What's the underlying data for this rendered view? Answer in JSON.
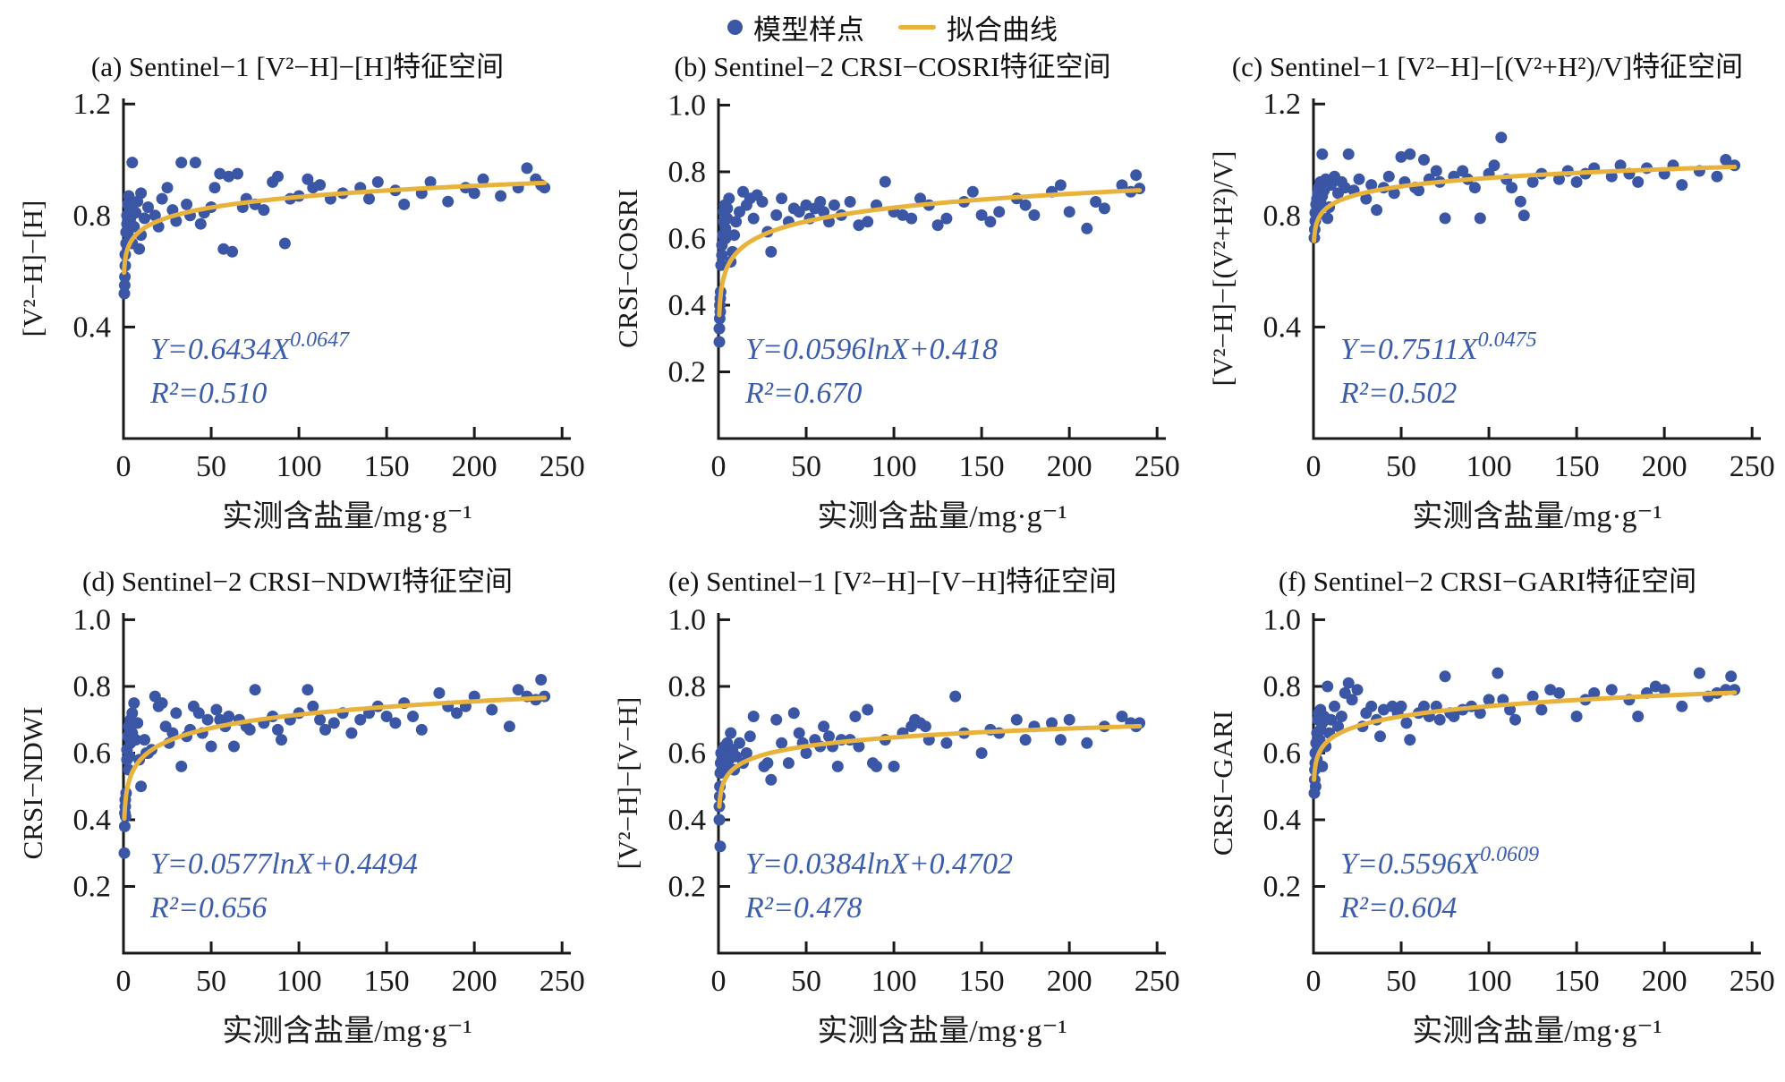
{
  "legend": {
    "sample_label": "模型样点",
    "fit_label": "拟合曲线"
  },
  "xlabel": "实测含盐量/mg·g⁻¹",
  "colors": {
    "point": "#3a56a4",
    "curve": "#e8b33d",
    "equation": "#3d5dab",
    "axis": "#1a1a1a"
  },
  "chart_data": [
    {
      "id": "a",
      "type": "scatter",
      "title": "(a) Sentinel−1 [V²−H]−[H]特征空间",
      "ylabel": "[V²−H]−[H]",
      "xlabel": "实测含盐量/mg·g⁻¹",
      "xlim": [
        0,
        255
      ],
      "ylim": [
        0,
        1.22
      ],
      "xticks": [
        0,
        50,
        100,
        150,
        200,
        250
      ],
      "yticks": [
        "0.4",
        "0.8",
        "1.2"
      ],
      "fit": {
        "type": "power",
        "a": 0.6434,
        "b": 0.0647,
        "label_base": "Y=0.6434X",
        "label_sup": "0.0647",
        "r2_label": "R²=0.510"
      },
      "points": {
        "x": [
          0.5,
          0.7,
          0.8,
          1,
          1,
          1.5,
          1.5,
          2,
          2,
          2.5,
          3,
          3,
          3.5,
          4,
          4,
          5,
          5,
          6,
          7,
          8,
          9,
          10,
          10,
          12,
          14,
          18,
          20,
          22,
          25,
          28,
          30,
          33,
          36,
          38,
          41,
          44,
          46,
          50,
          52,
          55,
          57,
          60,
          62,
          65,
          68,
          70,
          75,
          80,
          85,
          88,
          92,
          95,
          100,
          105,
          108,
          112,
          118,
          125,
          135,
          140,
          145,
          155,
          160,
          170,
          175,
          185,
          195,
          200,
          205,
          215,
          225,
          230,
          235,
          238,
          240
        ],
        "y": [
          0.52,
          0.55,
          0.58,
          0.62,
          0.66,
          0.7,
          0.74,
          0.77,
          0.8,
          0.84,
          0.87,
          0.75,
          0.72,
          0.79,
          0.83,
          0.99,
          0.7,
          0.76,
          0.81,
          0.85,
          0.68,
          0.73,
          0.88,
          0.79,
          0.83,
          0.8,
          0.76,
          0.86,
          0.9,
          0.82,
          0.78,
          0.99,
          0.84,
          0.8,
          0.99,
          0.77,
          0.81,
          0.83,
          0.9,
          0.95,
          0.68,
          0.94,
          0.67,
          0.95,
          0.83,
          0.86,
          0.84,
          0.82,
          0.92,
          0.94,
          0.7,
          0.86,
          0.87,
          0.93,
          0.9,
          0.91,
          0.86,
          0.88,
          0.9,
          0.86,
          0.92,
          0.89,
          0.84,
          0.88,
          0.92,
          0.85,
          0.9,
          0.88,
          0.93,
          0.87,
          0.9,
          0.97,
          0.93,
          0.91,
          0.9
        ]
      }
    },
    {
      "id": "b",
      "type": "scatter",
      "title": "(b) Sentinel−2 CRSI−COSRI特征空间",
      "ylabel": "CRSI−COSRI",
      "xlabel": "实测含盐量/mg·g⁻¹",
      "xlim": [
        0,
        255
      ],
      "ylim": [
        0,
        1.02
      ],
      "xticks": [
        0,
        50,
        100,
        150,
        200,
        250
      ],
      "yticks": [
        "0.2",
        "0.4",
        "0.6",
        "0.8",
        "1.0"
      ],
      "fit": {
        "type": "log",
        "a": 0.0596,
        "b": 0.418,
        "label_base": "Y=0.0596lnX+0.418",
        "label_sup": "",
        "r2_label": "R²=0.670"
      },
      "points": {
        "x": [
          0.5,
          0.5,
          0.7,
          0.8,
          1,
          1,
          1.2,
          1.5,
          2,
          2,
          2.5,
          3,
          3,
          3.5,
          4,
          4,
          5,
          5,
          6,
          7,
          8,
          9,
          10,
          12,
          14,
          16,
          18,
          20,
          22,
          25,
          28,
          30,
          33,
          36,
          40,
          43,
          46,
          50,
          52,
          55,
          58,
          60,
          63,
          66,
          70,
          75,
          80,
          85,
          90,
          95,
          100,
          105,
          110,
          115,
          120,
          125,
          130,
          140,
          145,
          150,
          155,
          160,
          170,
          175,
          180,
          190,
          195,
          200,
          210,
          215,
          220,
          230,
          235,
          238,
          240
        ],
        "y": [
          0.29,
          0.33,
          0.36,
          0.4,
          0.38,
          0.42,
          0.44,
          0.52,
          0.55,
          0.58,
          0.61,
          0.65,
          0.68,
          0.7,
          0.6,
          0.63,
          0.66,
          0.69,
          0.72,
          0.53,
          0.56,
          0.61,
          0.65,
          0.68,
          0.74,
          0.7,
          0.72,
          0.66,
          0.73,
          0.71,
          0.62,
          0.56,
          0.67,
          0.72,
          0.65,
          0.69,
          0.68,
          0.7,
          0.66,
          0.69,
          0.71,
          0.68,
          0.65,
          0.7,
          0.67,
          0.71,
          0.64,
          0.65,
          0.7,
          0.77,
          0.68,
          0.67,
          0.66,
          0.72,
          0.7,
          0.64,
          0.66,
          0.71,
          0.74,
          0.67,
          0.65,
          0.68,
          0.72,
          0.7,
          0.67,
          0.74,
          0.76,
          0.68,
          0.63,
          0.71,
          0.69,
          0.76,
          0.74,
          0.79,
          0.75
        ]
      }
    },
    {
      "id": "c",
      "type": "scatter",
      "title": "(c) Sentinel−1 [V²−H]−[(V²+H²)/V]特征空间",
      "ylabel": "[V²−H]−[(V²+H²)/V]",
      "xlabel": "实测含盐量/mg·g⁻¹",
      "xlim": [
        0,
        255
      ],
      "ylim": [
        0,
        1.22
      ],
      "xticks": [
        0,
        50,
        100,
        150,
        200,
        250
      ],
      "yticks": [
        "0.4",
        "0.8",
        "1.2"
      ],
      "fit": {
        "type": "power",
        "a": 0.7511,
        "b": 0.0475,
        "label_base": "Y=0.7511X",
        "label_sup": "0.0475",
        "r2_label": "R²=0.502"
      },
      "points": {
        "x": [
          0.5,
          0.7,
          1,
          1,
          1.5,
          2,
          2,
          2.5,
          3,
          3,
          4,
          4,
          5,
          5,
          6,
          7,
          8,
          9,
          10,
          12,
          14,
          16,
          18,
          20,
          23,
          26,
          30,
          33,
          36,
          40,
          43,
          46,
          50,
          52,
          55,
          58,
          60,
          63,
          66,
          70,
          72,
          75,
          80,
          85,
          88,
          92,
          95,
          100,
          103,
          107,
          110,
          113,
          118,
          120,
          125,
          130,
          140,
          145,
          150,
          155,
          160,
          170,
          175,
          180,
          185,
          190,
          200,
          205,
          210,
          220,
          230,
          235,
          240
        ],
        "y": [
          0.72,
          0.75,
          0.78,
          0.81,
          0.84,
          0.8,
          0.86,
          0.88,
          0.83,
          0.9,
          0.92,
          0.85,
          1.02,
          0.87,
          0.89,
          0.93,
          0.79,
          0.83,
          0.91,
          0.94,
          0.88,
          0.92,
          0.9,
          1.02,
          0.89,
          0.93,
          0.86,
          0.91,
          0.82,
          0.9,
          0.94,
          0.88,
          1.01,
          0.92,
          1.02,
          0.9,
          0.89,
          1.0,
          0.93,
          0.96,
          0.92,
          0.79,
          0.94,
          0.96,
          0.93,
          0.9,
          0.79,
          0.95,
          0.98,
          1.08,
          0.93,
          0.9,
          0.85,
          0.8,
          0.92,
          0.95,
          0.93,
          0.96,
          0.92,
          0.95,
          0.97,
          0.94,
          0.98,
          0.95,
          0.92,
          0.97,
          0.95,
          0.98,
          0.91,
          0.96,
          0.94,
          1.0,
          0.98
        ]
      }
    },
    {
      "id": "d",
      "type": "scatter",
      "title": "(d) Sentinel−2 CRSI−NDWI特征空间",
      "ylabel": "CRSI−NDWI",
      "xlabel": "实测含盐量/mg·g⁻¹",
      "xlim": [
        0,
        255
      ],
      "ylim": [
        0,
        1.02
      ],
      "xticks": [
        0,
        50,
        100,
        150,
        200,
        250
      ],
      "yticks": [
        "0.2",
        "0.4",
        "0.6",
        "0.8",
        "1.0"
      ],
      "fit": {
        "type": "log",
        "a": 0.0577,
        "b": 0.4494,
        "label_base": "Y=0.0577lnX+0.4494",
        "label_sup": "",
        "r2_label": "R²=0.656"
      },
      "points": {
        "x": [
          0.5,
          0.7,
          0.8,
          1,
          1,
          1.2,
          1.5,
          2,
          2,
          2.5,
          3,
          3,
          3.5,
          4,
          4,
          5,
          5,
          6,
          7,
          8,
          9,
          10,
          12,
          13,
          14,
          16,
          18,
          20,
          22,
          24,
          26,
          28,
          30,
          33,
          36,
          38,
          40,
          43,
          45,
          48,
          50,
          53,
          55,
          58,
          60,
          63,
          66,
          70,
          72,
          75,
          80,
          85,
          88,
          90,
          95,
          100,
          105,
          108,
          112,
          115,
          120,
          125,
          130,
          135,
          140,
          145,
          150,
          155,
          160,
          165,
          170,
          180,
          185,
          190,
          195,
          200,
          210,
          220,
          225,
          230,
          235,
          238,
          240
        ],
        "y": [
          0.3,
          0.38,
          0.42,
          0.44,
          0.46,
          0.41,
          0.48,
          0.58,
          0.61,
          0.65,
          0.68,
          0.55,
          0.59,
          0.63,
          0.7,
          0.66,
          0.72,
          0.75,
          0.64,
          0.69,
          0.58,
          0.5,
          0.64,
          0.6,
          0.6,
          0.61,
          0.77,
          0.74,
          0.75,
          0.68,
          0.63,
          0.66,
          0.72,
          0.56,
          0.65,
          0.67,
          0.74,
          0.72,
          0.66,
          0.7,
          0.62,
          0.73,
          0.7,
          0.68,
          0.71,
          0.62,
          0.7,
          0.68,
          0.67,
          0.79,
          0.69,
          0.71,
          0.67,
          0.64,
          0.7,
          0.72,
          0.79,
          0.74,
          0.7,
          0.67,
          0.69,
          0.72,
          0.66,
          0.7,
          0.72,
          0.74,
          0.71,
          0.69,
          0.75,
          0.71,
          0.67,
          0.78,
          0.74,
          0.72,
          0.74,
          0.77,
          0.73,
          0.68,
          0.79,
          0.77,
          0.76,
          0.82,
          0.77
        ]
      }
    },
    {
      "id": "e",
      "type": "scatter",
      "title": "(e) Sentinel−1 [V²−H]−[V−H]特征空间",
      "ylabel": "[V²−H]−[V−H]",
      "xlabel": "实测含盐量/mg·g⁻¹",
      "xlim": [
        0,
        255
      ],
      "ylim": [
        0,
        1.02
      ],
      "xticks": [
        0,
        50,
        100,
        150,
        200,
        250
      ],
      "yticks": [
        "0.2",
        "0.4",
        "0.6",
        "0.8",
        "1.0"
      ],
      "fit": {
        "type": "log",
        "a": 0.0384,
        "b": 0.4702,
        "label_base": "Y=0.0384lnX+0.4702",
        "label_sup": "",
        "r2_label": "R²=0.478"
      },
      "points": {
        "x": [
          0.5,
          0.5,
          0.7,
          0.8,
          1,
          1,
          1.2,
          1.5,
          2,
          2,
          2.5,
          3,
          3,
          3.5,
          4,
          4,
          5,
          5,
          6,
          7,
          8,
          9,
          10,
          12,
          14,
          16,
          18,
          20,
          26,
          28,
          30,
          33,
          36,
          40,
          43,
          46,
          48,
          50,
          55,
          58,
          60,
          63,
          65,
          68,
          70,
          75,
          78,
          80,
          85,
          88,
          90,
          95,
          100,
          105,
          110,
          112,
          115,
          118,
          120,
          130,
          135,
          140,
          150,
          155,
          160,
          170,
          175,
          180,
          190,
          195,
          200,
          210,
          220,
          230,
          235,
          238,
          240
        ],
        "y": [
          0.4,
          0.44,
          0.47,
          0.5,
          0.32,
          0.54,
          0.57,
          0.6,
          0.55,
          0.58,
          0.61,
          0.56,
          0.59,
          0.62,
          0.57,
          0.6,
          0.63,
          0.55,
          0.58,
          0.66,
          0.61,
          0.55,
          0.59,
          0.63,
          0.57,
          0.6,
          0.65,
          0.71,
          0.56,
          0.57,
          0.52,
          0.7,
          0.63,
          0.57,
          0.72,
          0.66,
          0.63,
          0.6,
          0.64,
          0.62,
          0.68,
          0.65,
          0.62,
          0.56,
          0.64,
          0.64,
          0.71,
          0.62,
          0.73,
          0.57,
          0.56,
          0.64,
          0.56,
          0.66,
          0.68,
          0.7,
          0.69,
          0.68,
          0.64,
          0.63,
          0.77,
          0.66,
          0.6,
          0.67,
          0.66,
          0.7,
          0.64,
          0.68,
          0.69,
          0.64,
          0.7,
          0.63,
          0.68,
          0.71,
          0.69,
          0.68,
          0.69
        ]
      }
    },
    {
      "id": "f",
      "type": "scatter",
      "title": "(f) Sentinel−2 CRSI−GARI特征空间",
      "ylabel": "CRSI−GARI",
      "xlabel": "实测含盐量/mg·g⁻¹",
      "xlim": [
        0,
        255
      ],
      "ylim": [
        0,
        1.02
      ],
      "xticks": [
        0,
        50,
        100,
        150,
        200,
        250
      ],
      "yticks": [
        "0.2",
        "0.4",
        "0.6",
        "0.8",
        "1.0"
      ],
      "fit": {
        "type": "power",
        "a": 0.5596,
        "b": 0.0609,
        "label_base": "Y=0.5596X",
        "label_sup": "0.0609",
        "r2_label": "R²=0.604"
      },
      "points": {
        "x": [
          0.5,
          0.7,
          0.8,
          1,
          1,
          1.2,
          1.5,
          2,
          2,
          2.5,
          3,
          3,
          3.5,
          4,
          4,
          5,
          5,
          6,
          7,
          8,
          9,
          10,
          12,
          14,
          16,
          18,
          20,
          22,
          25,
          28,
          30,
          33,
          36,
          38,
          40,
          45,
          48,
          50,
          53,
          55,
          60,
          63,
          66,
          70,
          72,
          75,
          78,
          80,
          85,
          90,
          95,
          100,
          105,
          108,
          112,
          115,
          125,
          130,
          135,
          140,
          150,
          155,
          160,
          170,
          180,
          185,
          190,
          195,
          200,
          210,
          220,
          225,
          230,
          235,
          238,
          240
        ],
        "y": [
          0.48,
          0.52,
          0.55,
          0.57,
          0.6,
          0.5,
          0.63,
          0.66,
          0.58,
          0.7,
          0.61,
          0.72,
          0.64,
          0.67,
          0.73,
          0.56,
          0.69,
          0.71,
          0.62,
          0.8,
          0.66,
          0.7,
          0.74,
          0.68,
          0.71,
          0.78,
          0.81,
          0.76,
          0.79,
          0.68,
          0.72,
          0.74,
          0.7,
          0.65,
          0.73,
          0.74,
          0.72,
          0.74,
          0.69,
          0.64,
          0.72,
          0.74,
          0.71,
          0.74,
          0.7,
          0.83,
          0.72,
          0.71,
          0.73,
          0.74,
          0.72,
          0.76,
          0.84,
          0.76,
          0.73,
          0.7,
          0.77,
          0.73,
          0.79,
          0.78,
          0.71,
          0.76,
          0.78,
          0.79,
          0.76,
          0.71,
          0.78,
          0.8,
          0.79,
          0.74,
          0.84,
          0.77,
          0.78,
          0.79,
          0.83,
          0.79
        ]
      }
    }
  ]
}
